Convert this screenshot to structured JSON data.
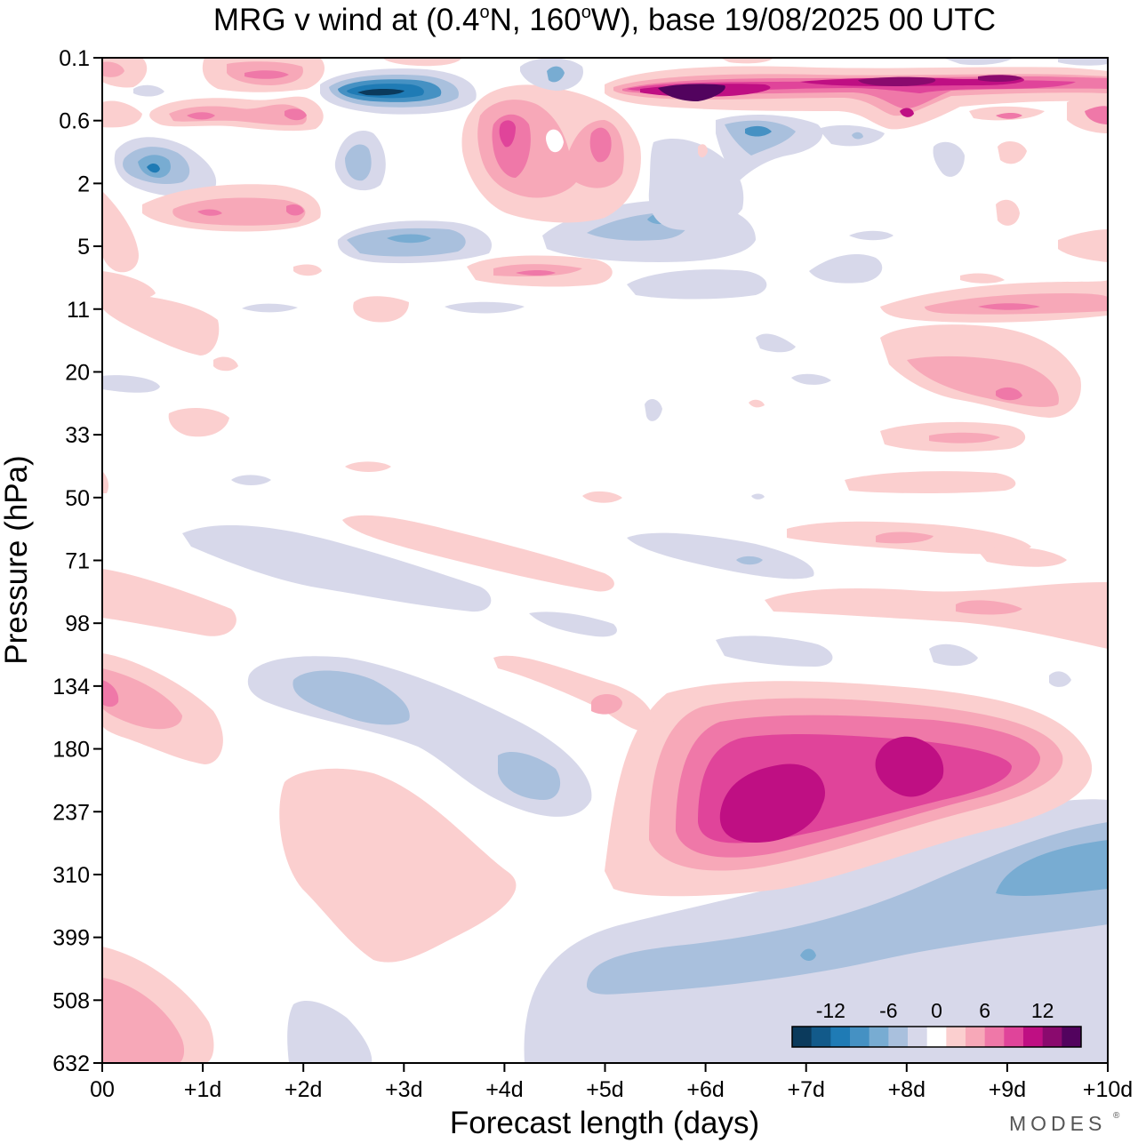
{
  "chart_data": {
    "type": "heatmap",
    "subtype": "filled-contour",
    "title_parts": {
      "main": "MRG v wind at (0.4",
      "deg1": "o",
      "mid": "N, 160",
      "deg2": "o",
      "end": "W),  base 19/08/2025  00 UTC"
    },
    "xlabel": "Forecast length (days)",
    "ylabel": "Pressure (hPa)",
    "xlim": [
      0,
      10
    ],
    "x_ticks": [
      0,
      1,
      2,
      3,
      4,
      5,
      6,
      7,
      8,
      9,
      10
    ],
    "x_tick_labels": [
      "00",
      "+1d",
      "+2d",
      "+3d",
      "+4d",
      "+5d",
      "+6d",
      "+7d",
      "+8d",
      "+9d",
      "+10d"
    ],
    "y_tick_labels": [
      "0.1",
      "0.6",
      "2",
      "5",
      "11",
      "20",
      "33",
      "50",
      "71",
      "98",
      "134",
      "180",
      "237",
      "310",
      "399",
      "508",
      "632"
    ],
    "colorbar": {
      "levels": [
        -15,
        -12,
        -10,
        -8,
        -6,
        -4,
        -2,
        0,
        2,
        4,
        6,
        8,
        10,
        12,
        15
      ],
      "labeled_values": [
        -12,
        -6,
        0,
        6,
        12
      ],
      "labels": [
        "-12",
        "-6",
        "0",
        "6",
        "12"
      ],
      "colors": [
        "#0b3a5c",
        "#125a8a",
        "#1f7bb5",
        "#4591c3",
        "#78acd2",
        "#a9c0dd",
        "#d7d8ea",
        "#ffffff",
        "#fbcfcf",
        "#f7a8b8",
        "#ef78a8",
        "#e0449a",
        "#bf0f83",
        "#8a0a6e",
        "#52035e"
      ]
    },
    "features": [
      {
        "name": "upper-positive-core",
        "days": [
          6.0,
          7.0
        ],
        "pressure": [
          180,
          237
        ],
        "value": 12
      },
      {
        "name": "upper-positive-secondary",
        "days": [
          7.8,
          8.5
        ],
        "pressure": [
          180,
          210
        ],
        "value": 12
      },
      {
        "name": "negative-band-low",
        "days": [
          5.0,
          10.0
        ],
        "pressure": [
          310,
          508
        ],
        "value": -6
      },
      {
        "name": "stratospheric-negative",
        "days": [
          2.5,
          3.5
        ],
        "pressure": [
          0.1,
          0.6
        ],
        "value": -12
      },
      {
        "name": "stratospheric-positive",
        "days": [
          5.5,
          9.5
        ],
        "pressure": [
          0.1,
          0.6
        ],
        "value": 15
      }
    ]
  },
  "branding": {
    "logo": "MODES"
  }
}
